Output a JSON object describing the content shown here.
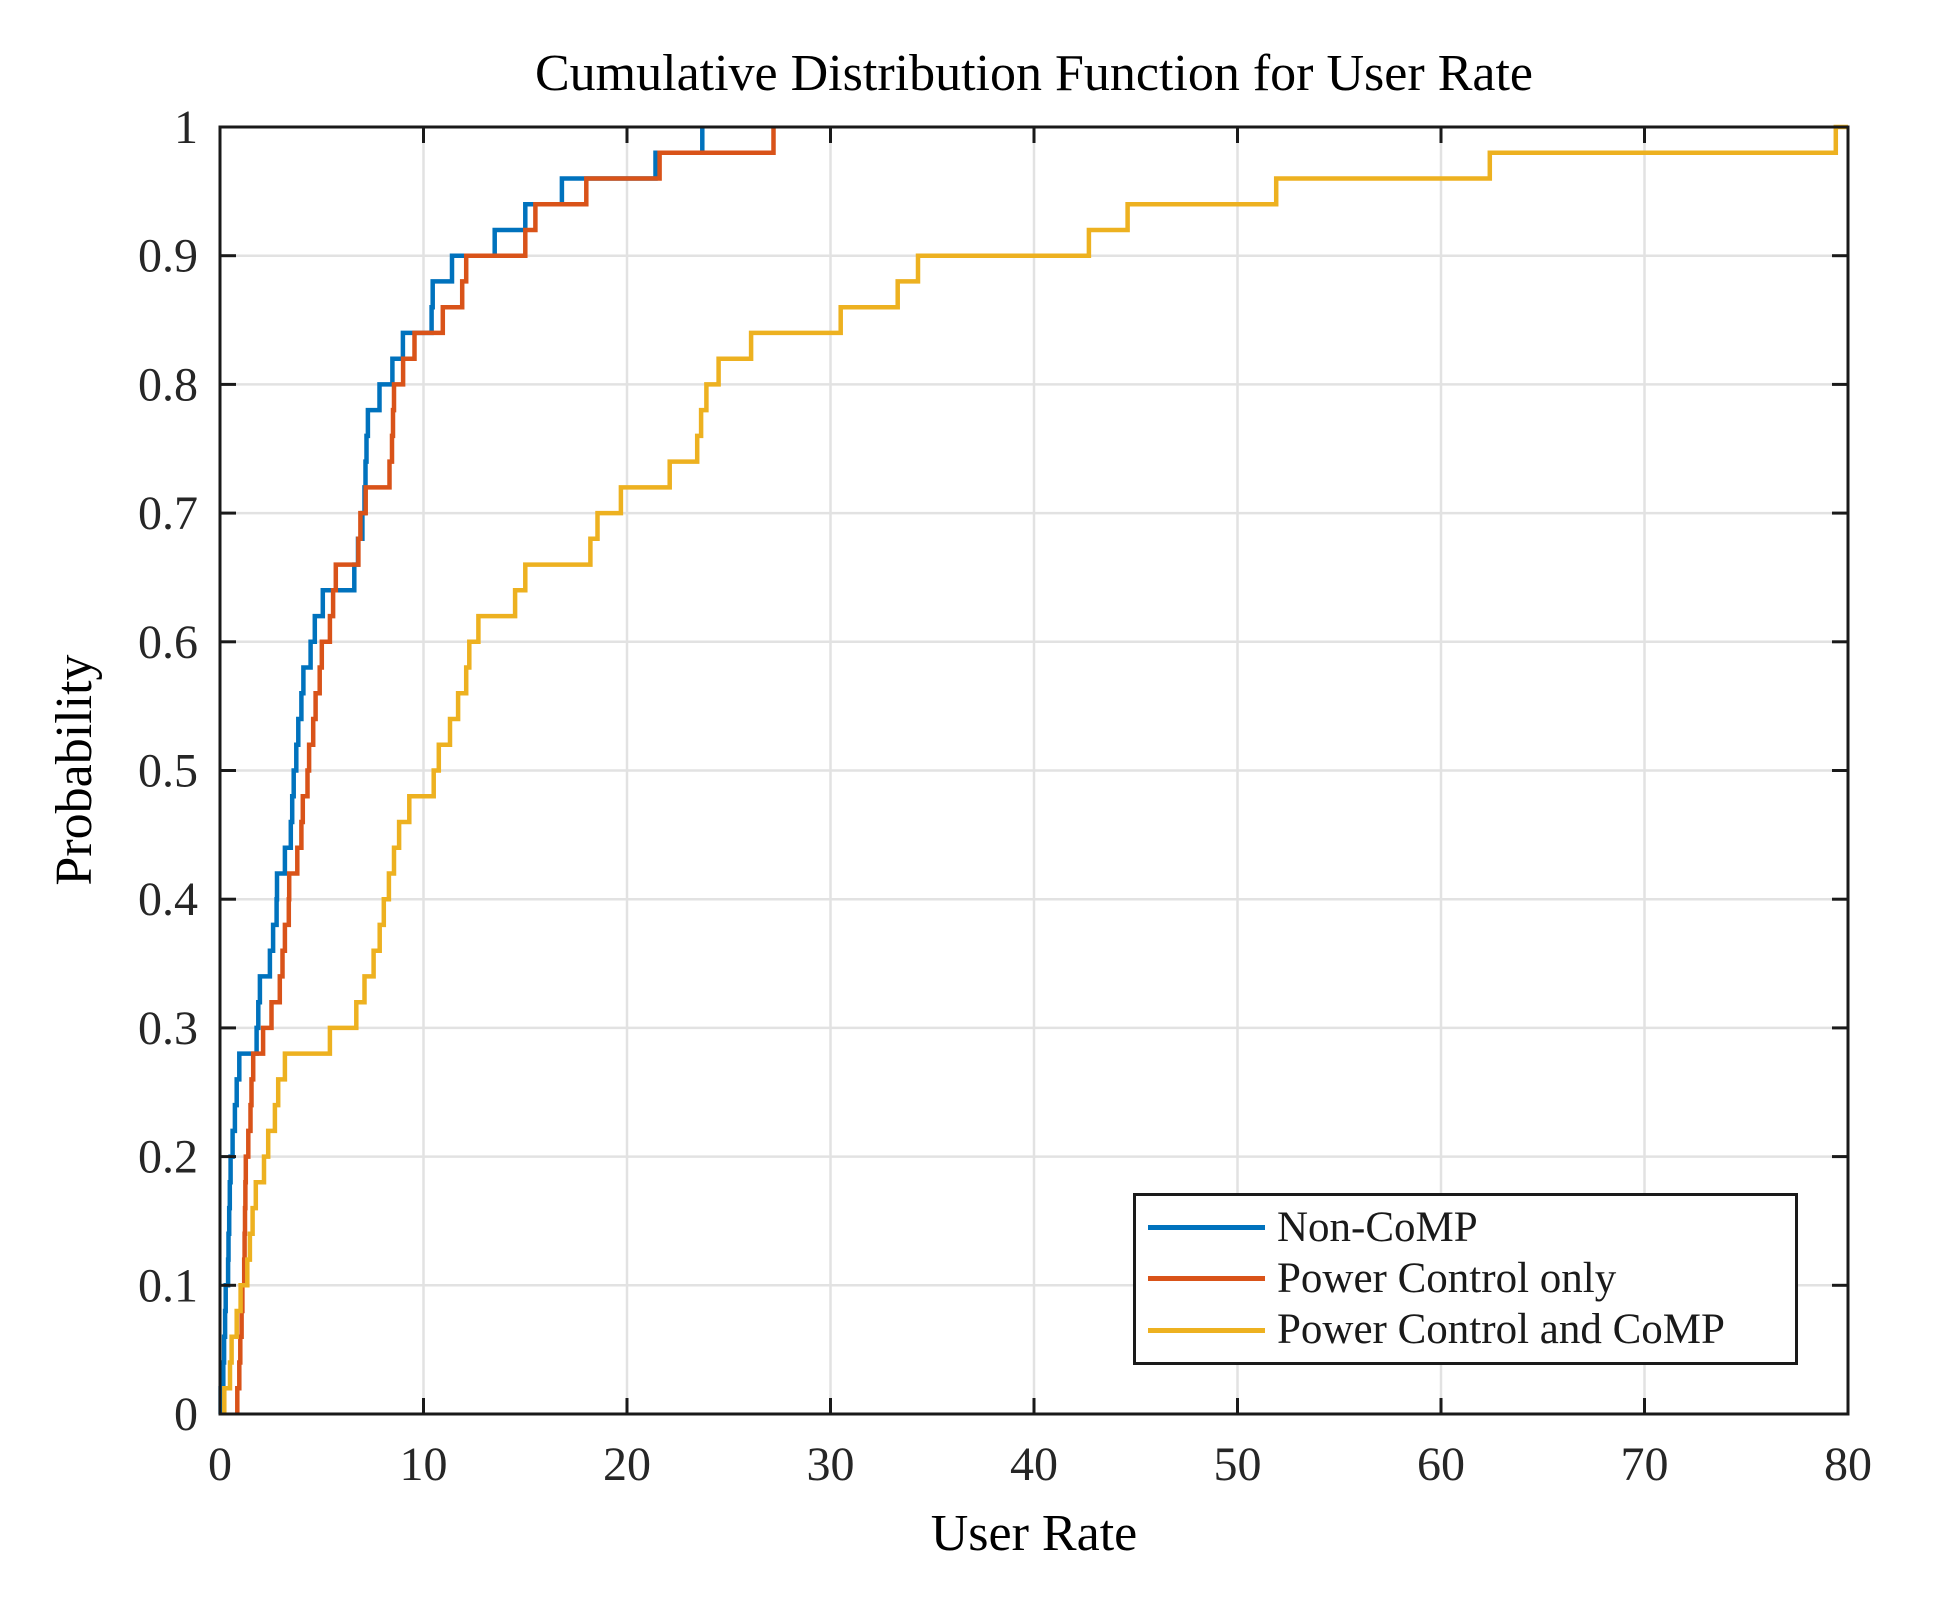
{
  "figure": {
    "title": "Cumulative Distribution Function for User Rate",
    "xlabel": "User Rate",
    "ylabel": "Probability"
  },
  "legend": {
    "entries": [
      {
        "label": "Non-CoMP",
        "color": "#0072BD"
      },
      {
        "label": "Power Control only",
        "color": "#D95319"
      },
      {
        "label": "Power Control and CoMP",
        "color": "#EDB120"
      }
    ]
  },
  "colors": {
    "axis": "#1a1a1a",
    "grid": "#e2e2e2",
    "tick_label": "#262626",
    "background": "#ffffff"
  },
  "chart_data": {
    "type": "line",
    "subtype": "ecdf-stairs",
    "title": "Cumulative Distribution Function for User Rate",
    "xlabel": "User Rate",
    "ylabel": "Probability",
    "xlim": [
      0,
      80
    ],
    "ylim": [
      0,
      1
    ],
    "x_ticks": [
      0,
      10,
      20,
      30,
      40,
      50,
      60,
      70,
      80
    ],
    "y_ticks": [
      0,
      0.1,
      0.2,
      0.3,
      0.4,
      0.5,
      0.6,
      0.7,
      0.8,
      0.9,
      1
    ],
    "grid": true,
    "legend_position": "inside-lower-right",
    "probabilities": [
      0.02,
      0.04,
      0.06,
      0.08,
      0.1,
      0.12,
      0.14,
      0.16,
      0.18,
      0.2,
      0.22,
      0.24,
      0.26,
      0.28,
      0.3,
      0.32,
      0.34,
      0.36,
      0.38,
      0.4,
      0.42,
      0.44,
      0.46,
      0.48,
      0.5,
      0.52,
      0.54,
      0.56,
      0.58,
      0.6,
      0.62,
      0.64,
      0.66,
      0.68,
      0.7,
      0.72,
      0.74,
      0.76,
      0.78,
      0.8,
      0.82,
      0.84,
      0.86,
      0.88,
      0.9,
      0.92,
      0.94,
      0.96,
      0.98,
      1.0
    ],
    "series": [
      {
        "name": "Non-CoMP",
        "color": "#0072BD",
        "extend_to_xmax": false,
        "x": [
          0.03,
          0.16,
          0.2,
          0.25,
          0.28,
          0.4,
          0.42,
          0.45,
          0.48,
          0.52,
          0.62,
          0.73,
          0.82,
          0.95,
          1.8,
          1.88,
          1.96,
          2.45,
          2.61,
          2.78,
          2.8,
          3.19,
          3.48,
          3.55,
          3.62,
          3.75,
          3.85,
          4.0,
          4.1,
          4.45,
          4.66,
          5.05,
          6.6,
          6.78,
          7.0,
          7.1,
          7.15,
          7.2,
          7.27,
          7.84,
          8.47,
          8.99,
          10.4,
          10.45,
          11.4,
          13.5,
          15.0,
          16.8,
          21.4,
          23.7
        ]
      },
      {
        "name": "Power Control only",
        "color": "#D95319",
        "extend_to_xmax": false,
        "x": [
          0.85,
          0.95,
          1.0,
          1.06,
          1.1,
          1.19,
          1.21,
          1.23,
          1.25,
          1.27,
          1.39,
          1.5,
          1.55,
          1.63,
          2.12,
          2.53,
          2.94,
          3.07,
          3.19,
          3.38,
          3.4,
          3.8,
          4.0,
          4.07,
          4.3,
          4.38,
          4.58,
          4.7,
          4.9,
          5.0,
          5.4,
          5.56,
          5.69,
          6.8,
          6.9,
          7.16,
          8.33,
          8.45,
          8.5,
          8.55,
          9.0,
          9.56,
          10.95,
          11.9,
          12.1,
          15.0,
          15.5,
          18.0,
          21.6,
          27.2
        ]
      },
      {
        "name": "Power Control and CoMP",
        "color": "#EDB120",
        "extend_to_xmax": true,
        "x": [
          0.21,
          0.49,
          0.57,
          0.82,
          1.01,
          1.34,
          1.47,
          1.6,
          1.76,
          2.16,
          2.37,
          2.7,
          2.86,
          3.19,
          5.4,
          6.7,
          7.1,
          7.55,
          7.85,
          8.05,
          8.3,
          8.55,
          8.8,
          9.3,
          10.5,
          10.75,
          11.3,
          11.7,
          12.1,
          12.25,
          12.7,
          14.5,
          15.0,
          18.2,
          18.55,
          19.7,
          22.1,
          23.45,
          23.64,
          23.9,
          24.5,
          26.1,
          30.5,
          33.3,
          34.3,
          42.7,
          44.6,
          51.9,
          62.4,
          79.4
        ]
      }
    ]
  }
}
